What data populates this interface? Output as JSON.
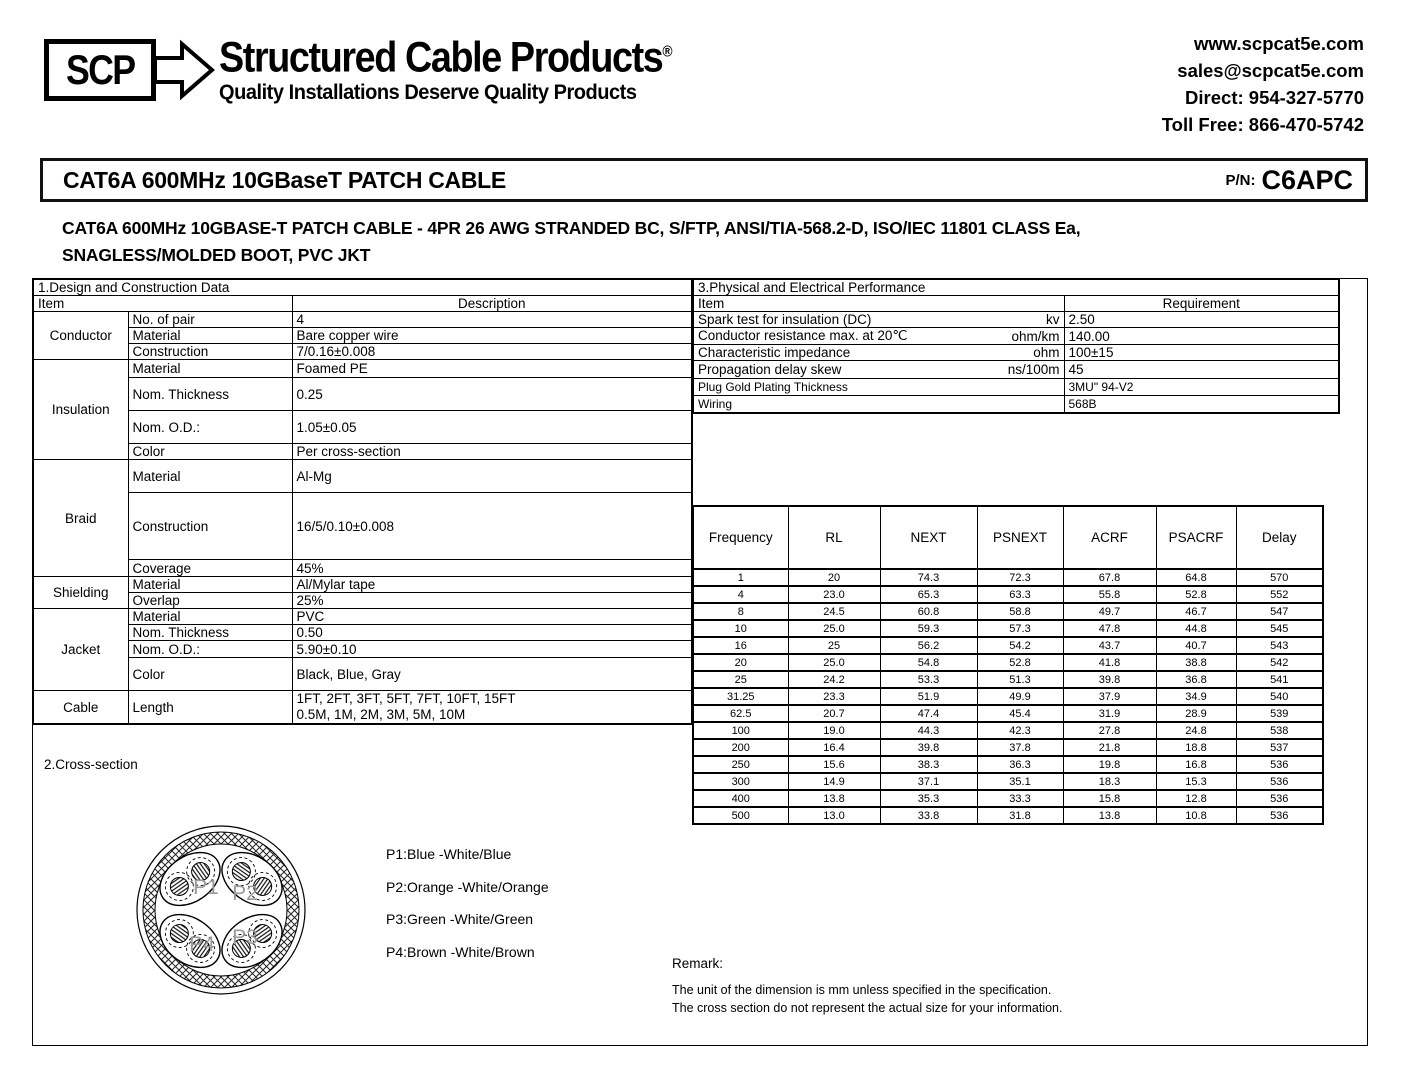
{
  "header": {
    "logo_text": "SCP",
    "brand": "Structured Cable Products",
    "registered_mark": "®",
    "tagline": "Quality Installations Deserve Quality Products",
    "contact": [
      "www.scpcat5e.com",
      "sales@scpcat5e.com",
      "Direct: 954-327-5770",
      "Toll Free: 866-470-5742"
    ]
  },
  "title_bar": {
    "title": "CAT6A 600MHz 10GBaseT PATCH CABLE",
    "pn_label": "P/N:",
    "pn_value": "C6APC"
  },
  "subtitle": {
    "line1": "CAT6A 600MHz 10GBASE-T PATCH CABLE - 4PR 26 AWG STRANDED BC, S/FTP, ANSI/TIA-568.2-D, ISO/IEC 11801 CLASS Ea,",
    "line2": "SNAGLESS/MOLDED BOOT, PVC JKT"
  },
  "design_table": {
    "title": "1.Design and Construction Data",
    "col_item": "Item",
    "col_description": "Description",
    "groups": [
      {
        "name": "Conductor",
        "rows": [
          [
            "No. of pair",
            "4"
          ],
          [
            "Material",
            "Bare copper wire"
          ],
          [
            "Construction",
            "7/0.16±0.008"
          ]
        ]
      },
      {
        "name": "Insulation",
        "rows": [
          [
            "Material",
            "Foamed PE"
          ],
          [
            "Nom. Thickness",
            "0.25"
          ],
          [
            "Nom. O.D.:",
            "1.05±0.05"
          ],
          [
            "Color",
            "Per cross-section"
          ]
        ]
      },
      {
        "name": "Braid",
        "rows": [
          [
            "Material",
            "Al-Mg"
          ],
          [
            "Construction",
            "16/5/0.10±0.008"
          ],
          [
            "Coverage",
            "45%"
          ]
        ]
      },
      {
        "name": "Shielding",
        "rows": [
          [
            "Material",
            "Al/Mylar tape"
          ],
          [
            "Overlap",
            "25%"
          ]
        ]
      },
      {
        "name": "Jacket",
        "rows": [
          [
            "Material",
            "PVC"
          ],
          [
            "Nom. Thickness",
            "0.50"
          ],
          [
            "Nom. O.D.:",
            "5.90±0.10"
          ],
          [
            "Color",
            "Black, Blue, Gray"
          ]
        ]
      },
      {
        "name": "Cable",
        "rows": [
          [
            "Length",
            "1FT, 2FT, 3FT, 5FT, 7FT, 10FT, 15FT\n0.5M, 1M, 2M, 3M, 5M, 10M"
          ]
        ]
      }
    ]
  },
  "physical_table": {
    "title": "3.Physical and Electrical Performance",
    "col_item": "Item",
    "col_requirement": "Requirement",
    "rows": [
      {
        "item": "Spark test for insulation (DC)",
        "unit": "kv",
        "req": "2.50"
      },
      {
        "item": "Conductor resistance max. at 20℃",
        "unit": "ohm/km",
        "req": "140.00"
      },
      {
        "item": "Characteristic impedance",
        "unit": "ohm",
        "req": "100±15"
      },
      {
        "item": "Propagation delay skew",
        "unit": "ns/100m",
        "req": "45"
      },
      {
        "item": "Plug Gold Plating Thickness",
        "unit": "",
        "req": "3MU\" 94-V2"
      },
      {
        "item": "Wiring",
        "unit": "",
        "req": "568B"
      }
    ]
  },
  "frequency_table": {
    "headers": [
      "Frequency",
      "RL",
      "NEXT",
      "PSNEXT",
      "ACRF",
      "PSACRF",
      "Delay"
    ],
    "rows": [
      [
        "1",
        "20",
        "74.3",
        "72.3",
        "67.8",
        "64.8",
        "570"
      ],
      [
        "4",
        "23.0",
        "65.3",
        "63.3",
        "55.8",
        "52.8",
        "552"
      ],
      [
        "8",
        "24.5",
        "60.8",
        "58.8",
        "49.7",
        "46.7",
        "547"
      ],
      [
        "10",
        "25.0",
        "59.3",
        "57.3",
        "47.8",
        "44.8",
        "545"
      ],
      [
        "16",
        "25",
        "56.2",
        "54.2",
        "43.7",
        "40.7",
        "543"
      ],
      [
        "20",
        "25.0",
        "54.8",
        "52.8",
        "41.8",
        "38.8",
        "542"
      ],
      [
        "25",
        "24.2",
        "53.3",
        "51.3",
        "39.8",
        "36.8",
        "541"
      ],
      [
        "31.25",
        "23.3",
        "51.9",
        "49.9",
        "37.9",
        "34.9",
        "540"
      ],
      [
        "62.5",
        "20.7",
        "47.4",
        "45.4",
        "31.9",
        "28.9",
        "539"
      ],
      [
        "100",
        "19.0",
        "44.3",
        "42.3",
        "27.8",
        "24.8",
        "538"
      ],
      [
        "200",
        "16.4",
        "39.8",
        "37.8",
        "21.8",
        "18.8",
        "537"
      ],
      [
        "250",
        "15.6",
        "38.3",
        "36.3",
        "19.8",
        "16.8",
        "536"
      ],
      [
        "300",
        "14.9",
        "37.1",
        "35.1",
        "18.3",
        "15.3",
        "536"
      ],
      [
        "400",
        "13.8",
        "35.3",
        "33.3",
        "15.8",
        "12.8",
        "536"
      ],
      [
        "500",
        "13.0",
        "33.8",
        "31.8",
        "13.8",
        "10.8",
        "536"
      ]
    ]
  },
  "cross_section": {
    "title": "2.Cross-section",
    "pair_labels": [
      "P1",
      "P2",
      "P3",
      "P4"
    ],
    "legend": [
      "P1:Blue -White/Blue",
      "P2:Orange -White/Orange",
      "P3:Green -White/Green",
      "P4:Brown -White/Brown"
    ]
  },
  "remark": {
    "title": "Remark:",
    "lines": [
      "The unit of the dimension is mm unless specified in the specification.",
      "The cross section do not represent the actual size for your information."
    ]
  }
}
